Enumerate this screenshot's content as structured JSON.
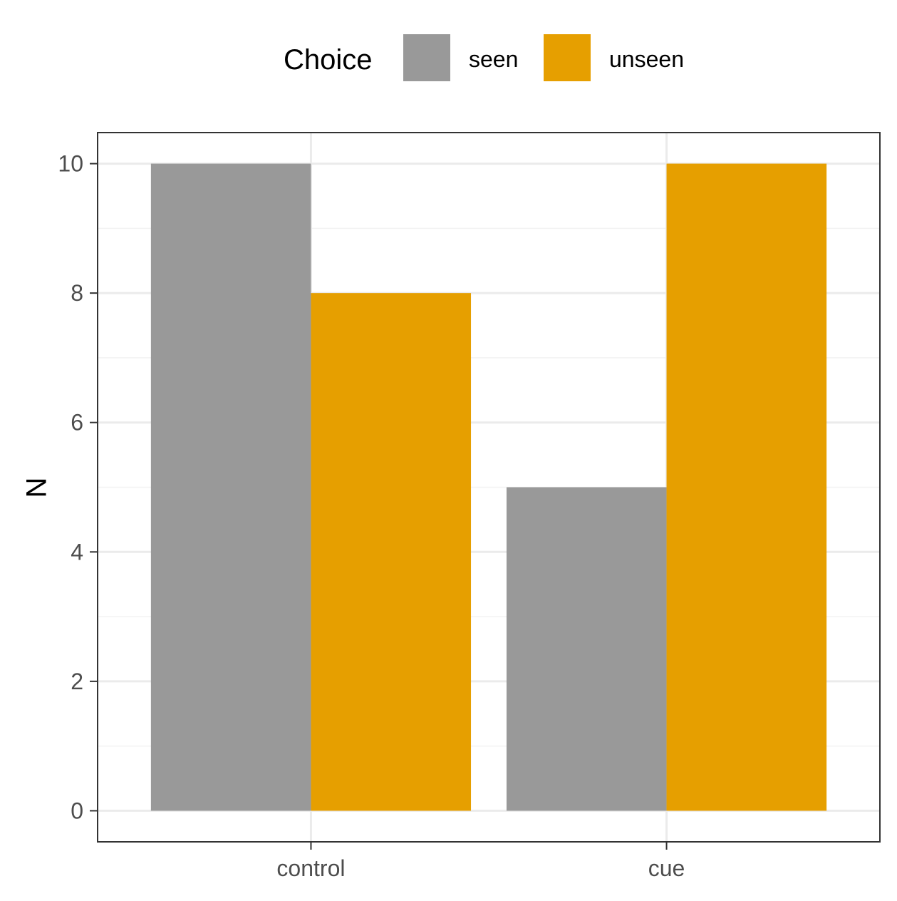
{
  "chart_data": {
    "type": "bar",
    "categories": [
      "control",
      "cue"
    ],
    "series": [
      {
        "name": "seen",
        "values": [
          10,
          5
        ]
      },
      {
        "name": "unseen",
        "values": [
          8,
          10
        ]
      }
    ],
    "title": "",
    "xlabel": "",
    "ylabel": "N",
    "ylim": [
      -0.48,
      10.48
    ],
    "y_ticks": [
      "0",
      "2",
      "4",
      "6",
      "8",
      "10"
    ],
    "grid": true,
    "legend": {
      "title": "Choice",
      "position": "top",
      "entries": [
        "seen",
        "unseen"
      ]
    },
    "colors": {
      "seen": "#999999",
      "unseen": "#E69F00",
      "panel_border": "#333333",
      "grid_major": "#EBEBEB",
      "grid_minor": "#F2F2F2",
      "tick_label": "#4D4D4D"
    }
  }
}
